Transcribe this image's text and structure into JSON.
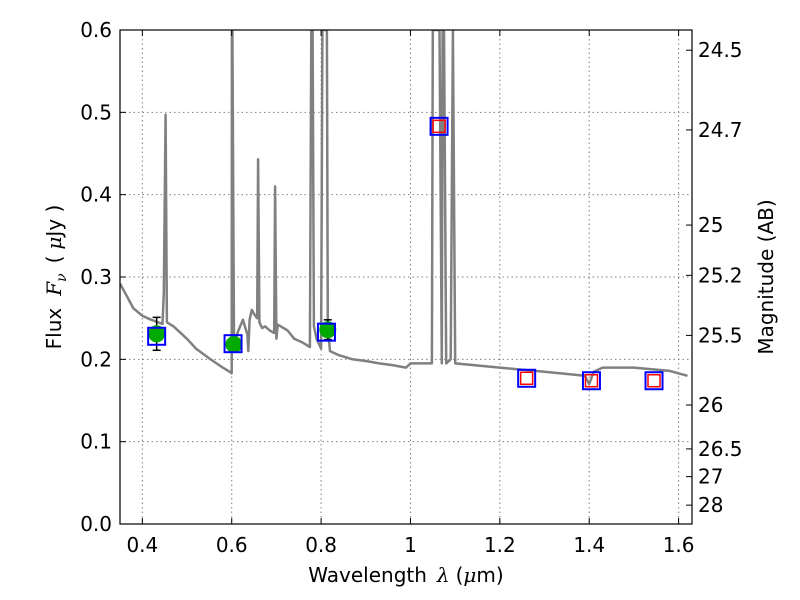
{
  "chart_data": {
    "type": "scatter",
    "xlabel": {
      "text": "Wavelength",
      "symbol": "λ",
      "unit_open": "(",
      "unit_mu": "μ",
      "unit_rest": "m)"
    },
    "ylabel": {
      "text": "Flux",
      "symbol": "F",
      "subscript": "ν",
      "unit_open": "(",
      "unit_mu": "μ",
      "unit_rest": "Jy )"
    },
    "y2label": "Magnitude (AB)",
    "xlim": [
      0.35,
      1.63
    ],
    "ylim": [
      0.0,
      0.6
    ],
    "grid": true,
    "x_ticks": [
      {
        "value": 0.4,
        "label": "0.4"
      },
      {
        "value": 0.6,
        "label": "0.6"
      },
      {
        "value": 0.8,
        "label": "0.8"
      },
      {
        "value": 1.0,
        "label": "1"
      },
      {
        "value": 1.2,
        "label": "1.2"
      },
      {
        "value": 1.4,
        "label": "1.4"
      },
      {
        "value": 1.6,
        "label": "1.6"
      }
    ],
    "y_ticks": [
      {
        "value": 0.0,
        "label": "0.0"
      },
      {
        "value": 0.1,
        "label": "0.1"
      },
      {
        "value": 0.2,
        "label": "0.2"
      },
      {
        "value": 0.3,
        "label": "0.3"
      },
      {
        "value": 0.4,
        "label": "0.4"
      },
      {
        "value": 0.5,
        "label": "0.5"
      },
      {
        "value": 0.6,
        "label": "0.6"
      }
    ],
    "y2_ticks": [
      {
        "mag": 24.5,
        "label": "24.5"
      },
      {
        "mag": 24.7,
        "label": "24.7"
      },
      {
        "mag": 25.0,
        "label": "25"
      },
      {
        "mag": 25.2,
        "label": "25.2"
      },
      {
        "mag": 25.5,
        "label": "25.5"
      },
      {
        "mag": 26.0,
        "label": "26"
      },
      {
        "mag": 26.5,
        "label": "26.5"
      },
      {
        "mag": 27.0,
        "label": "27"
      },
      {
        "mag": 28.0,
        "label": "28"
      }
    ],
    "sed_model": {
      "color": "#808080",
      "x": [
        0.35,
        0.36,
        0.38,
        0.4,
        0.42,
        0.445,
        0.448,
        0.452,
        0.455,
        0.47,
        0.5,
        0.52,
        0.55,
        0.58,
        0.595,
        0.6,
        0.6005,
        0.6015,
        0.605,
        0.615,
        0.625,
        0.635,
        0.637,
        0.64,
        0.645,
        0.65,
        0.657,
        0.659,
        0.662,
        0.668,
        0.675,
        0.685,
        0.695,
        0.697,
        0.7,
        0.703,
        0.71,
        0.725,
        0.74,
        0.76,
        0.775,
        0.778,
        0.781,
        0.784,
        0.79,
        0.8,
        0.803,
        0.805,
        0.807,
        0.81,
        0.813,
        0.815,
        0.82,
        0.84,
        0.87,
        0.9,
        0.93,
        0.96,
        0.99,
        1.0,
        1.04,
        1.048,
        1.05,
        1.055,
        1.058,
        1.062,
        1.065,
        1.07,
        1.072,
        1.075,
        1.08,
        1.09,
        1.095,
        1.1,
        1.2,
        1.3,
        1.39,
        1.4,
        1.41,
        1.43,
        1.5,
        1.58,
        1.62
      ],
      "y": [
        0.292,
        0.282,
        0.262,
        0.253,
        0.248,
        0.243,
        0.28,
        0.497,
        0.245,
        0.24,
        0.225,
        0.213,
        0.201,
        0.19,
        0.185,
        0.183,
        0.6,
        0.6,
        0.22,
        0.235,
        0.248,
        0.23,
        0.21,
        0.248,
        0.26,
        0.255,
        0.25,
        0.443,
        0.245,
        0.238,
        0.24,
        0.235,
        0.232,
        0.41,
        0.225,
        0.242,
        0.24,
        0.235,
        0.225,
        0.22,
        0.215,
        0.6,
        0.6,
        0.24,
        0.225,
        0.213,
        0.6,
        0.6,
        0.6,
        0.6,
        0.6,
        0.24,
        0.21,
        0.205,
        0.2,
        0.198,
        0.195,
        0.193,
        0.19,
        0.195,
        0.195,
        0.195,
        0.6,
        0.6,
        0.6,
        0.6,
        0.6,
        0.195,
        0.6,
        0.6,
        0.195,
        0.2,
        0.6,
        0.195,
        0.19,
        0.185,
        0.18,
        0.17,
        0.185,
        0.19,
        0.19,
        0.186,
        0.18
      ]
    },
    "observed_points": [
      {
        "x": 0.432,
        "y": 0.231,
        "yerr": 0.02,
        "color": "#00aa00"
      },
      {
        "x": 0.605,
        "y": 0.218,
        "yerr": 0.008,
        "color": "#00aa00"
      },
      {
        "x": 0.815,
        "y": 0.236,
        "yerr": 0.012,
        "color": "#00aa00"
      }
    ],
    "model_photometry": [
      {
        "x": 0.432,
        "y": 0.228
      },
      {
        "x": 0.603,
        "y": 0.219
      },
      {
        "x": 0.812,
        "y": 0.233
      },
      {
        "x": 1.064,
        "y": 0.483
      },
      {
        "x": 1.26,
        "y": 0.177
      },
      {
        "x": 1.405,
        "y": 0.174
      },
      {
        "x": 1.545,
        "y": 0.174
      }
    ],
    "upper_limit_points": [
      {
        "x": 1.064,
        "y": 0.483
      },
      {
        "x": 1.26,
        "y": 0.177
      },
      {
        "x": 1.405,
        "y": 0.174
      },
      {
        "x": 1.545,
        "y": 0.174
      }
    ],
    "colors": {
      "model_box": "#0000ff",
      "limit_box": "#ff0000",
      "sed_line": "#808080",
      "grid": "#808080"
    }
  }
}
